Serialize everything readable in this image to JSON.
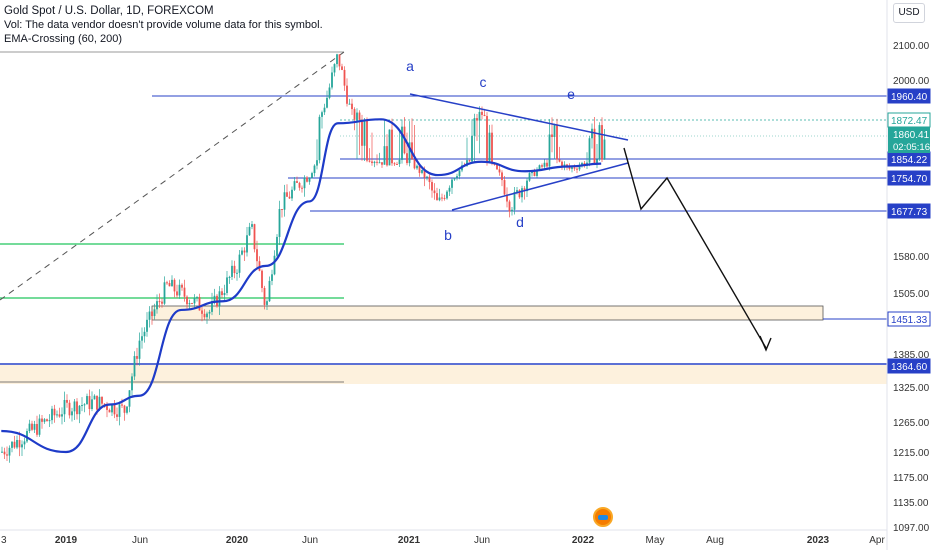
{
  "header": {
    "title": "Gold Spot / U.S. Dollar, 1D, FOREXCOM",
    "vol_note": "Vol: The data vendor doesn't provide volume data for this symbol.",
    "indicator": "EMA-Crossing (60, 200)"
  },
  "currency_badge": "USD",
  "colors": {
    "ema_line": "#1e3bc8",
    "annotation_blue": "#2740c7",
    "up_candle": "#26a69a",
    "down_candle": "#ef5350",
    "support_green": "#22c55e",
    "zone_fill": "#fdf1dd",
    "current_price_bg": "#26a69a",
    "axis_text": "#333333"
  },
  "chart_data": {
    "type": "candlestick",
    "symbol": "XAUUSD",
    "timeframe": "1D",
    "x_tick_labels": [
      "3",
      "2019",
      "Jun",
      "2020",
      "Jun",
      "2021",
      "Jun",
      "2022",
      "May",
      "Aug",
      "2023",
      "Apr"
    ],
    "y_tick_labels": [
      "2100.00",
      "2000.00",
      "1580.00",
      "1505.00",
      "1385.00",
      "1325.00",
      "1265.00",
      "1215.00",
      "1175.00",
      "1135.00",
      "1097.00"
    ],
    "ylim": [
      1097,
      2150
    ],
    "price_series_approx": [
      {
        "date": "2018-11",
        "close": 1215
      },
      {
        "date": "2019-01",
        "close": 1290
      },
      {
        "date": "2019-03",
        "close": 1300
      },
      {
        "date": "2019-05",
        "close": 1285
      },
      {
        "date": "2019-06",
        "close": 1410
      },
      {
        "date": "2019-08",
        "close": 1520
      },
      {
        "date": "2019-09",
        "close": 1505
      },
      {
        "date": "2019-11",
        "close": 1465
      },
      {
        "date": "2020-01",
        "close": 1560
      },
      {
        "date": "2020-02",
        "close": 1640
      },
      {
        "date": "2020-03",
        "close": 1470
      },
      {
        "date": "2020-04",
        "close": 1690
      },
      {
        "date": "2020-06",
        "close": 1770
      },
      {
        "date": "2020-08",
        "close": 2070
      },
      {
        "date": "2020-09",
        "close": 1890
      },
      {
        "date": "2020-11",
        "close": 1840
      },
      {
        "date": "2021-01",
        "close": 1850
      },
      {
        "date": "2021-03",
        "close": 1690
      },
      {
        "date": "2021-06",
        "close": 1900
      },
      {
        "date": "2021-08",
        "close": 1690
      },
      {
        "date": "2021-11",
        "close": 1860
      },
      {
        "date": "2021-12",
        "close": 1800
      },
      {
        "date": "2022-02",
        "close": 1860
      }
    ],
    "ema_series_approx": [
      {
        "date": "2018-11",
        "value": 1250
      },
      {
        "date": "2019-01",
        "value": 1215
      },
      {
        "date": "2019-04",
        "value": 1295
      },
      {
        "date": "2019-06",
        "value": 1310
      },
      {
        "date": "2019-09",
        "value": 1470
      },
      {
        "date": "2019-12",
        "value": 1488
      },
      {
        "date": "2020-03",
        "value": 1560
      },
      {
        "date": "2020-06",
        "value": 1700
      },
      {
        "date": "2020-08",
        "value": 1870
      },
      {
        "date": "2020-11",
        "value": 1875
      },
      {
        "date": "2021-03",
        "value": 1770
      },
      {
        "date": "2021-06",
        "value": 1840
      },
      {
        "date": "2021-09",
        "value": 1790
      },
      {
        "date": "2021-12",
        "value": 1815
      },
      {
        "date": "2022-02",
        "value": 1830
      }
    ],
    "price_levels": [
      {
        "label": "1960.40",
        "value": 1960.4
      },
      {
        "label": "1872.47",
        "value": 1872.47
      },
      {
        "label": "1854.22",
        "value": 1854.22
      },
      {
        "label": "1754.70",
        "value": 1754.7
      },
      {
        "label": "1677.73",
        "value": 1677.73
      },
      {
        "label": "1451.33",
        "value": 1451.33
      },
      {
        "label": "1364.60",
        "value": 1364.6
      }
    ],
    "current_price": {
      "label": "1860.41",
      "countdown": "02:05:16"
    },
    "wave_labels": [
      "a",
      "b",
      "c",
      "d",
      "e"
    ],
    "projection": "triangle breakdown toward the 1451.33 zone"
  }
}
